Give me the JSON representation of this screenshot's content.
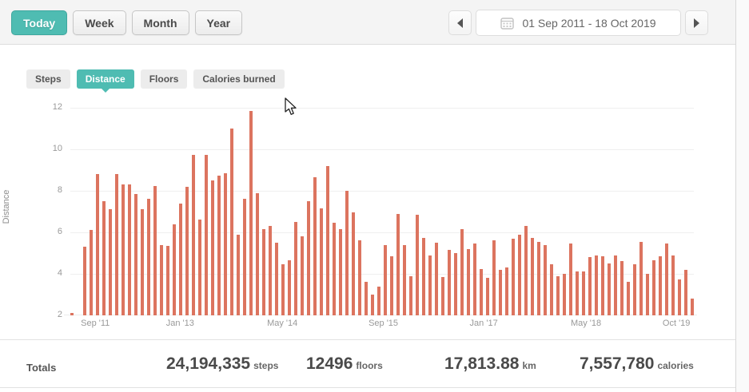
{
  "toolbar": {
    "period_buttons": [
      {
        "label": "Today",
        "selected": true
      },
      {
        "label": "Week",
        "selected": false
      },
      {
        "label": "Month",
        "selected": false
      },
      {
        "label": "Year",
        "selected": false
      }
    ],
    "date_range": "01 Sep 2011 - 18 Oct 2019"
  },
  "tabs": [
    {
      "label": "Steps",
      "selected": false
    },
    {
      "label": "Distance",
      "selected": true
    },
    {
      "label": "Floors",
      "selected": false
    },
    {
      "label": "Calories burned",
      "selected": false
    }
  ],
  "chart_data": {
    "type": "bar",
    "title": "",
    "xlabel": "",
    "ylabel": "Distance",
    "ylim": [
      2,
      12
    ],
    "y_ticks": [
      12,
      10,
      8,
      6,
      4,
      2
    ],
    "grid": true,
    "interval": "monthly",
    "x_start": "Sep 2011",
    "x_end": "Oct 2019",
    "bar_color": "#dc745f",
    "x_labels": [
      {
        "label": "Sep '11",
        "pos_pct": 4.0
      },
      {
        "label": "Jan '13",
        "pos_pct": 17.6
      },
      {
        "label": "May '14",
        "pos_pct": 34.0
      },
      {
        "label": "Sep '15",
        "pos_pct": 50.2
      },
      {
        "label": "Jan '17",
        "pos_pct": 66.3
      },
      {
        "label": "May '18",
        "pos_pct": 82.7
      },
      {
        "label": "Oct '19",
        "pos_pct": 97.2
      }
    ],
    "values": [
      2.1,
      2.0,
      5.3,
      6.1,
      8.8,
      7.5,
      7.1,
      8.8,
      8.3,
      8.3,
      7.85,
      7.1,
      7.6,
      8.25,
      5.4,
      5.35,
      6.4,
      7.4,
      8.2,
      9.75,
      6.6,
      9.75,
      8.5,
      8.75,
      8.85,
      11.0,
      5.9,
      7.6,
      11.85,
      7.9,
      6.15,
      6.3,
      5.5,
      4.45,
      4.65,
      6.5,
      5.8,
      7.5,
      8.65,
      7.15,
      9.2,
      6.45,
      6.15,
      8.0,
      6.95,
      5.6,
      3.6,
      3.0,
      3.4,
      5.4,
      4.85,
      6.9,
      5.4,
      3.9,
      6.85,
      5.75,
      4.9,
      5.5,
      3.85,
      5.15,
      5.0,
      6.15,
      5.2,
      5.45,
      4.25,
      3.8,
      5.6,
      4.2,
      4.3,
      5.7,
      5.9,
      6.3,
      5.75,
      5.55,
      5.4,
      4.45,
      3.9,
      4.0,
      5.45,
      4.1,
      4.1,
      4.8,
      4.9,
      4.85,
      4.5,
      4.9,
      4.6,
      3.6,
      4.45,
      5.55,
      4.0,
      4.65,
      4.85,
      5.45,
      4.9,
      3.75,
      4.2,
      2.8
    ]
  },
  "totals": {
    "label": "Totals",
    "items": [
      {
        "value": "24,194,335",
        "unit": "steps"
      },
      {
        "value": "12496",
        "unit": "floors"
      },
      {
        "value": "17,813.88",
        "unit": "km"
      },
      {
        "value": "7,557,780",
        "unit": "calories"
      }
    ]
  },
  "colors": {
    "accent_teal": "#4fbcb2",
    "bar": "#dc745f",
    "gridline": "#efefef"
  }
}
